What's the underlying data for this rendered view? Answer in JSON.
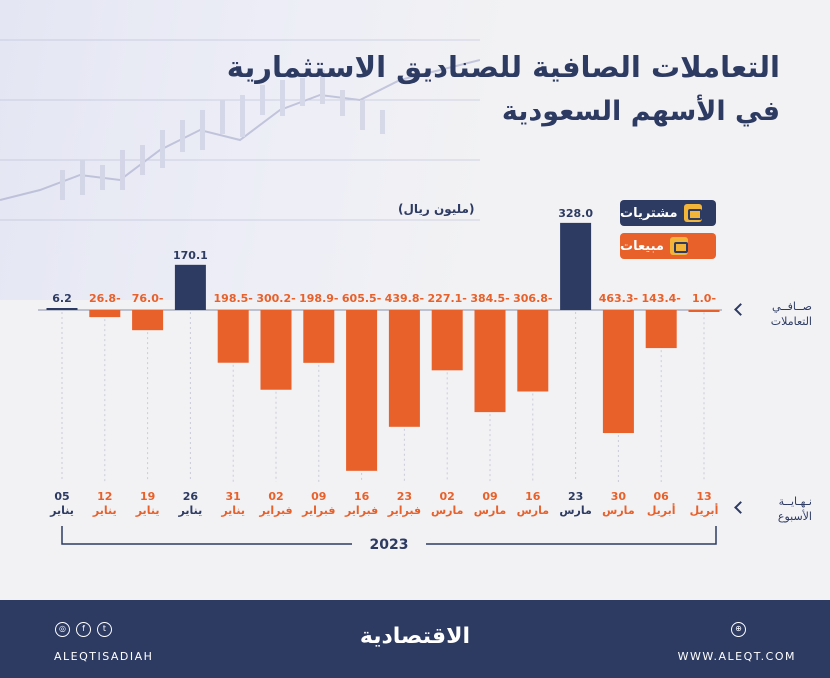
{
  "title_line1": "التعاملات الصافية للصناديق الاستثمارية",
  "title_line2": "في الأسهم السعودية",
  "unit": "(مليون ريال)",
  "legend": {
    "buy": "مشتريات",
    "sell": "مبيعات"
  },
  "row_labels": {
    "net": [
      "صــافــي",
      "التعاملات"
    ],
    "week": [
      "نـهـايــة",
      "الأسبوع"
    ]
  },
  "colors": {
    "buy": "#2d3b63",
    "sell": "#e8602a",
    "navy": "#2d3b63"
  },
  "chart_data": {
    "type": "bar",
    "categories": [
      {
        "day": "05",
        "month": "يناير"
      },
      {
        "day": "12",
        "month": "يناير"
      },
      {
        "day": "19",
        "month": "يناير"
      },
      {
        "day": "26",
        "month": "يناير"
      },
      {
        "day": "31",
        "month": "يناير"
      },
      {
        "day": "02",
        "month": "فبراير"
      },
      {
        "day": "09",
        "month": "فبراير"
      },
      {
        "day": "16",
        "month": "فبراير"
      },
      {
        "day": "23",
        "month": "فبراير"
      },
      {
        "day": "02",
        "month": "مارس"
      },
      {
        "day": "09",
        "month": "مارس"
      },
      {
        "day": "16",
        "month": "مارس"
      },
      {
        "day": "23",
        "month": "مارس"
      },
      {
        "day": "30",
        "month": "مارس"
      },
      {
        "day": "06",
        "month": "أبريل"
      },
      {
        "day": "13",
        "month": "أبريل"
      }
    ],
    "values": [
      6.2,
      -26.8,
      -76.0,
      170.1,
      -198.5,
      -300.2,
      -198.9,
      -605.5,
      -439.8,
      -227.1,
      -384.5,
      -306.8,
      328.0,
      -463.3,
      -143.4,
      -1.0
    ],
    "value_labels": [
      "6.2",
      "26.8-",
      "76.0-",
      "170.1",
      "198.5-",
      "300.2-",
      "198.9-",
      "605.5-",
      "439.8-",
      "227.1-",
      "384.5-",
      "306.8-",
      "328.0",
      "463.3-",
      "143.4-",
      "1.0-"
    ],
    "year_label": "2023",
    "ylim": [
      -605.5,
      328.0
    ]
  },
  "footer": {
    "logo": "الاقتصادية",
    "handle": "ALEQTISADIAH",
    "website": "WWW.ALEQT.COM",
    "social_left": [
      "instagram-icon",
      "facebook-icon",
      "twitter-icon"
    ],
    "social_right": [
      "web-icon"
    ]
  }
}
